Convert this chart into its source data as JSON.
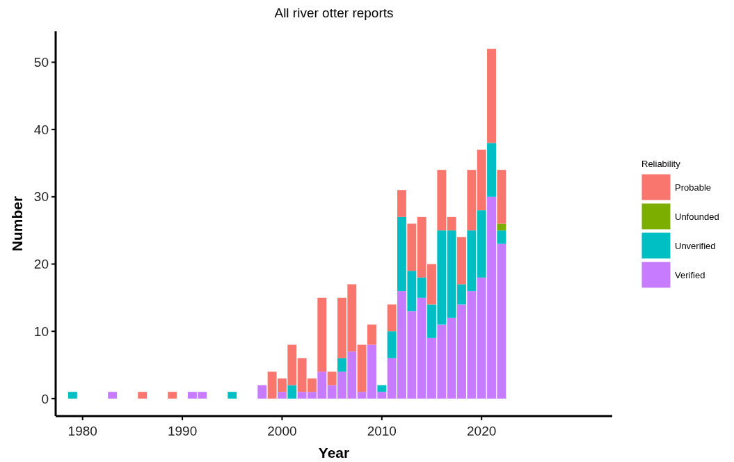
{
  "chart_data": {
    "type": "bar",
    "title": "All river otter reports",
    "xlabel": "Year",
    "ylabel": "Number",
    "legend_title": "Reliability",
    "legend": "right",
    "stacked": true,
    "grid": false,
    "x": [
      1979,
      1983,
      1986,
      1989,
      1991,
      1992,
      1995,
      1998,
      1999,
      2000,
      2001,
      2002,
      2003,
      2004,
      2005,
      2006,
      2007,
      2008,
      2009,
      2010,
      2011,
      2012,
      2013,
      2014,
      2015,
      2016,
      2017,
      2018,
      2019,
      2020,
      2021,
      2022
    ],
    "xlim": [
      1977.3,
      2033.1
    ],
    "xticks": [
      1980,
      1990,
      2000,
      2010,
      2020
    ],
    "ylim": [
      -2.6,
      54.6
    ],
    "yticks": [
      0,
      10,
      20,
      30,
      40,
      50
    ],
    "series": [
      {
        "name": "Verified",
        "color": "#c77cff",
        "values": [
          null,
          1,
          null,
          null,
          1,
          1,
          null,
          2,
          null,
          1,
          null,
          1,
          1,
          4,
          2,
          4,
          7,
          1,
          8,
          1,
          6,
          16,
          13,
          15,
          9,
          11,
          12,
          14,
          16,
          18,
          30,
          23
        ]
      },
      {
        "name": "Unverified",
        "color": "#00bfc4",
        "values": [
          1,
          null,
          null,
          null,
          null,
          null,
          1,
          null,
          null,
          null,
          2,
          null,
          null,
          null,
          null,
          2,
          null,
          null,
          null,
          1,
          4,
          11,
          6,
          3,
          5,
          14,
          13,
          3,
          9,
          10,
          8,
          2
        ]
      },
      {
        "name": "Unfounded",
        "color": "#7cae00",
        "values": [
          null,
          null,
          null,
          null,
          null,
          null,
          null,
          null,
          null,
          null,
          null,
          null,
          null,
          null,
          null,
          null,
          null,
          null,
          null,
          null,
          null,
          null,
          null,
          null,
          null,
          null,
          null,
          null,
          null,
          null,
          null,
          1
        ]
      },
      {
        "name": "Probable",
        "color": "#f8766d",
        "values": [
          null,
          null,
          1,
          1,
          null,
          null,
          null,
          null,
          4,
          2,
          6,
          5,
          2,
          11,
          2,
          9,
          10,
          7,
          3,
          null,
          4,
          4,
          7,
          9,
          6,
          9,
          2,
          7,
          9,
          9,
          14,
          8
        ]
      }
    ]
  }
}
